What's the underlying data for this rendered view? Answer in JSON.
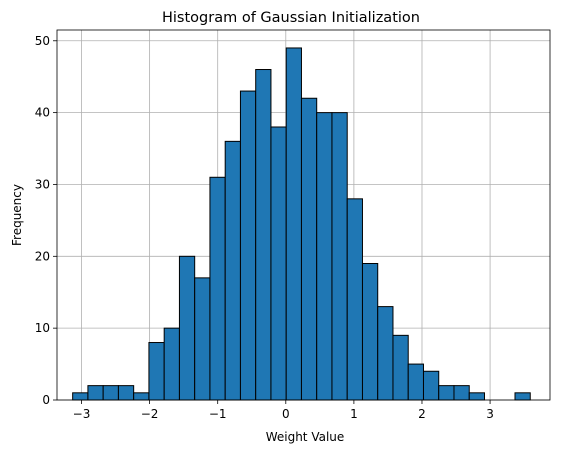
{
  "chart_data": {
    "type": "bar",
    "title": "Histogram of Gaussian Initialization",
    "xlabel": "Weight Value",
    "ylabel": "Frequency",
    "xlim": [
      -3.36,
      3.88
    ],
    "ylim": [
      0,
      51.5
    ],
    "grid": true,
    "bar_color": "#1f77b4",
    "edge_color": "#000000",
    "x_ticks": [
      -3,
      -2,
      -1,
      0,
      1,
      2,
      3
    ],
    "x_tick_labels": [
      "−3",
      "−2",
      "−1",
      "0",
      "1",
      "2",
      "3"
    ],
    "y_ticks": [
      0,
      10,
      20,
      30,
      40,
      50
    ],
    "y_tick_labels": [
      "0",
      "10",
      "20",
      "30",
      "40",
      "50"
    ],
    "bin_edges": [
      -3.13,
      -2.906,
      -2.682,
      -2.458,
      -2.234,
      -2.01,
      -1.786,
      -1.562,
      -1.338,
      -1.114,
      -0.89,
      -0.666,
      -0.442,
      -0.218,
      0.006,
      0.23,
      0.454,
      0.678,
      0.902,
      1.126,
      1.35,
      1.574,
      1.798,
      2.022,
      2.246,
      2.47,
      2.694,
      2.918,
      3.142,
      3.366,
      3.59
    ],
    "values": [
      1,
      2,
      2,
      2,
      1,
      8,
      10,
      20,
      17,
      31,
      36,
      43,
      46,
      38,
      49,
      42,
      40,
      40,
      28,
      19,
      13,
      9,
      5,
      4,
      2,
      2,
      1,
      0,
      0,
      1
    ]
  }
}
